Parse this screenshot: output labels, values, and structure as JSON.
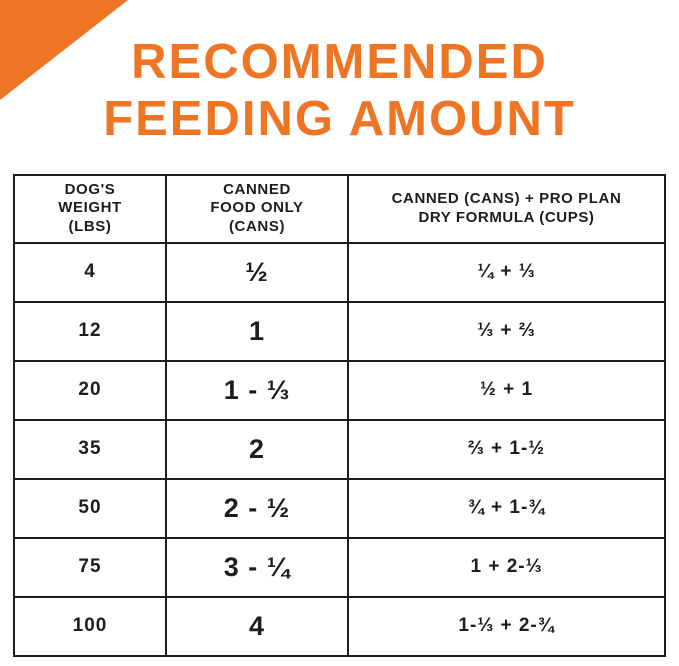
{
  "colors": {
    "accent_orange": "#ED7524",
    "table_line": "#1D1D1B"
  },
  "header": {
    "title_line1": "RECOMMENDED",
    "title_line2": "FEEDING AMOUNT"
  },
  "chart_data": {
    "type": "table",
    "title": "RECOMMENDED FEEDING AMOUNT",
    "columns": [
      "DOG'S WEIGHT (LBS)",
      "CANNED FOOD ONLY (CANS)",
      "CANNED (CANS) + PRO PLAN DRY FORMULA (CUPS)"
    ],
    "header_lines": [
      "DOG'S\nWEIGHT\n(LBS)",
      "CANNED\nFOOD ONLY\n(CANS)",
      "CANNED (CANS) + PRO PLAN\nDRY FORMULA (CUPS)"
    ],
    "rows": [
      [
        "4",
        "½",
        "¼ + ⅓"
      ],
      [
        "12",
        "1",
        "⅓ + ⅔"
      ],
      [
        "20",
        "1 - ⅓",
        "½ + 1"
      ],
      [
        "35",
        "2",
        "⅔ + 1-½"
      ],
      [
        "50",
        "2 - ½",
        "¾ + 1-¾"
      ],
      [
        "75",
        "3 - ¼",
        "1 + 2-⅓"
      ],
      [
        "100",
        "4",
        "1-⅓ + 2-¾"
      ]
    ]
  }
}
